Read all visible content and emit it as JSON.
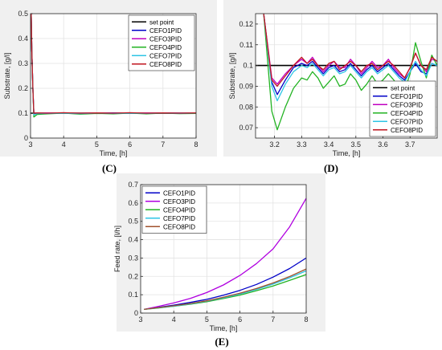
{
  "captions": {
    "c": "(C)",
    "d": "(D)",
    "e": "(E)"
  },
  "chart_data": [
    {
      "id": "C",
      "type": "line",
      "xlabel": "Time, [h]",
      "ylabel": "Substrate, [g/l]",
      "xlim": [
        3,
        8
      ],
      "ylim": [
        0,
        0.5
      ],
      "xticks": [
        3,
        4,
        5,
        6,
        7,
        8
      ],
      "yticks": [
        0,
        0.1,
        0.2,
        0.3,
        0.4,
        0.5
      ],
      "grid": true,
      "legend_position": "top-right",
      "series": [
        {
          "name": "set point",
          "color": "#000000",
          "x": [
            3,
            8
          ],
          "y": [
            0.1,
            0.1
          ]
        },
        {
          "name": "CEFO1PID",
          "color": "#0000c8",
          "x": [
            3.02,
            3.04,
            3.07,
            3.1,
            3.2,
            3.5,
            4,
            4.5,
            5,
            5.5,
            6,
            6.5,
            7,
            7.5,
            8
          ],
          "y": [
            0.5,
            0.35,
            0.2,
            0.1,
            0.099,
            0.1,
            0.101,
            0.099,
            0.1,
            0.101,
            0.1,
            0.099,
            0.101,
            0.1,
            0.1
          ]
        },
        {
          "name": "CEFO3PID",
          "color": "#c000c0",
          "x": [
            3.02,
            3.04,
            3.07,
            3.1,
            3.2,
            3.5,
            4,
            4.5,
            5,
            5.5,
            6,
            6.5,
            7,
            7.5,
            8
          ],
          "y": [
            0.5,
            0.35,
            0.2,
            0.1,
            0.1,
            0.101,
            0.1,
            0.1,
            0.101,
            0.1,
            0.1,
            0.101,
            0.1,
            0.1,
            0.1
          ]
        },
        {
          "name": "CEFO4PID",
          "color": "#22b322",
          "x": [
            3.02,
            3.04,
            3.07,
            3.1,
            3.2,
            3.5,
            4,
            4.5,
            5,
            5.5,
            6,
            6.5,
            7,
            7.5,
            8
          ],
          "y": [
            0.5,
            0.35,
            0.2,
            0.085,
            0.095,
            0.097,
            0.1,
            0.096,
            0.099,
            0.097,
            0.1,
            0.097,
            0.1,
            0.098,
            0.099
          ]
        },
        {
          "name": "CEFO7PID",
          "color": "#2ec5e5",
          "x": [
            3.02,
            3.04,
            3.07,
            3.1,
            3.2,
            3.5,
            4,
            4.5,
            5,
            5.5,
            6,
            6.5,
            7,
            7.5,
            8
          ],
          "y": [
            0.5,
            0.35,
            0.2,
            0.093,
            0.098,
            0.099,
            0.1,
            0.098,
            0.1,
            0.099,
            0.1,
            0.099,
            0.1,
            0.099,
            0.1
          ]
        },
        {
          "name": "CEFO8PID",
          "color": "#c0141e",
          "x": [
            3.02,
            3.04,
            3.07,
            3.1,
            3.2,
            3.5,
            4,
            4.5,
            5,
            5.5,
            6,
            6.5,
            7,
            7.5,
            8
          ],
          "y": [
            0.5,
            0.35,
            0.2,
            0.1,
            0.101,
            0.1,
            0.102,
            0.1,
            0.101,
            0.1,
            0.102,
            0.1,
            0.101,
            0.1,
            0.101
          ]
        }
      ]
    },
    {
      "id": "D",
      "type": "line",
      "xlabel": "Time, [h]",
      "ylabel": "Substrate, [g/l]",
      "xlim": [
        3.13,
        3.8
      ],
      "ylim": [
        0.065,
        0.125
      ],
      "xticks": [
        3.2,
        3.3,
        3.4,
        3.5,
        3.6,
        3.7
      ],
      "yticks": [
        0.07,
        0.08,
        0.09,
        0.1,
        0.11,
        0.12
      ],
      "grid": true,
      "legend_position": "bottom-right",
      "series": [
        {
          "name": "set point",
          "color": "#000000",
          "x": [
            3.13,
            3.8
          ],
          "y": [
            0.1,
            0.1
          ]
        },
        {
          "name": "CEFO1PID",
          "color": "#0000c8",
          "x": [
            3.16,
            3.19,
            3.21,
            3.24,
            3.27,
            3.3,
            3.32,
            3.34,
            3.36,
            3.38,
            3.4,
            3.42,
            3.44,
            3.46,
            3.48,
            3.5,
            3.52,
            3.54,
            3.56,
            3.58,
            3.6,
            3.62,
            3.64,
            3.66,
            3.68,
            3.7,
            3.72,
            3.74,
            3.76,
            3.78,
            3.8
          ],
          "y": [
            0.125,
            0.092,
            0.086,
            0.093,
            0.099,
            0.101,
            0.1,
            0.102,
            0.099,
            0.096,
            0.099,
            0.1,
            0.097,
            0.098,
            0.101,
            0.098,
            0.095,
            0.098,
            0.1,
            0.097,
            0.099,
            0.101,
            0.098,
            0.095,
            0.093,
            0.097,
            0.101,
            0.097,
            0.096,
            0.101,
            0.1
          ]
        },
        {
          "name": "CEFO3PID",
          "color": "#c000c0",
          "x": [
            3.16,
            3.19,
            3.21,
            3.24,
            3.27,
            3.3,
            3.32,
            3.34,
            3.36,
            3.38,
            3.4,
            3.42,
            3.44,
            3.46,
            3.48,
            3.5,
            3.52,
            3.54,
            3.56,
            3.58,
            3.6,
            3.62,
            3.64,
            3.66,
            3.68,
            3.7,
            3.72,
            3.74,
            3.76,
            3.78,
            3.8
          ],
          "y": [
            0.125,
            0.094,
            0.091,
            0.096,
            0.1,
            0.103,
            0.101,
            0.104,
            0.1,
            0.097,
            0.1,
            0.102,
            0.099,
            0.099,
            0.103,
            0.1,
            0.096,
            0.099,
            0.102,
            0.099,
            0.1,
            0.103,
            0.099,
            0.096,
            0.094,
            0.099,
            0.106,
            0.1,
            0.097,
            0.103,
            0.102
          ]
        },
        {
          "name": "CEFO4PID",
          "color": "#22b322",
          "x": [
            3.16,
            3.19,
            3.21,
            3.24,
            3.27,
            3.3,
            3.32,
            3.34,
            3.36,
            3.38,
            3.4,
            3.42,
            3.44,
            3.46,
            3.48,
            3.5,
            3.52,
            3.54,
            3.56,
            3.58,
            3.6,
            3.62,
            3.64,
            3.66,
            3.68,
            3.7,
            3.72,
            3.74,
            3.76,
            3.78,
            3.8
          ],
          "y": [
            0.125,
            0.078,
            0.069,
            0.08,
            0.089,
            0.094,
            0.093,
            0.097,
            0.094,
            0.089,
            0.092,
            0.095,
            0.09,
            0.091,
            0.096,
            0.093,
            0.088,
            0.091,
            0.095,
            0.091,
            0.093,
            0.096,
            0.093,
            0.089,
            0.088,
            0.096,
            0.111,
            0.102,
            0.094,
            0.105,
            0.1
          ]
        },
        {
          "name": "CEFO7PID",
          "color": "#2ec5e5",
          "x": [
            3.16,
            3.19,
            3.21,
            3.24,
            3.27,
            3.3,
            3.32,
            3.34,
            3.36,
            3.38,
            3.4,
            3.42,
            3.44,
            3.46,
            3.48,
            3.5,
            3.52,
            3.54,
            3.56,
            3.58,
            3.6,
            3.62,
            3.64,
            3.66,
            3.68,
            3.7,
            3.72,
            3.74,
            3.76,
            3.78,
            3.8
          ],
          "y": [
            0.125,
            0.09,
            0.083,
            0.091,
            0.097,
            0.1,
            0.099,
            0.101,
            0.098,
            0.095,
            0.098,
            0.099,
            0.096,
            0.097,
            0.1,
            0.097,
            0.094,
            0.097,
            0.099,
            0.096,
            0.098,
            0.1,
            0.097,
            0.094,
            0.092,
            0.097,
            0.102,
            0.098,
            0.095,
            0.101,
            0.1
          ]
        },
        {
          "name": "CEFO8PID",
          "color": "#c0141e",
          "x": [
            3.16,
            3.19,
            3.21,
            3.24,
            3.27,
            3.3,
            3.32,
            3.34,
            3.36,
            3.38,
            3.4,
            3.42,
            3.44,
            3.46,
            3.48,
            3.5,
            3.52,
            3.54,
            3.56,
            3.58,
            3.6,
            3.62,
            3.64,
            3.66,
            3.68,
            3.7,
            3.72,
            3.74,
            3.76,
            3.78,
            3.8
          ],
          "y": [
            0.125,
            0.093,
            0.09,
            0.095,
            0.1,
            0.104,
            0.101,
            0.103,
            0.1,
            0.098,
            0.101,
            0.102,
            0.098,
            0.1,
            0.102,
            0.1,
            0.097,
            0.1,
            0.101,
            0.098,
            0.1,
            0.102,
            0.1,
            0.097,
            0.094,
            0.099,
            0.106,
            0.1,
            0.098,
            0.104,
            0.102
          ]
        }
      ]
    },
    {
      "id": "E",
      "type": "line",
      "xlabel": "Time, [h]",
      "ylabel": "Feed rate, [l/h]",
      "xlim": [
        3,
        8
      ],
      "ylim": [
        0,
        0.7
      ],
      "xticks": [
        3,
        4,
        5,
        6,
        7,
        8
      ],
      "yticks": [
        0,
        0.1,
        0.2,
        0.3,
        0.4,
        0.5,
        0.6,
        0.7
      ],
      "grid": true,
      "legend_position": "top-left",
      "series": [
        {
          "name": "CEFO1PID",
          "color": "#0000c8",
          "x": [
            3.1,
            3.5,
            4,
            4.5,
            5,
            5.5,
            6,
            6.5,
            7,
            7.5,
            8
          ],
          "y": [
            0.02,
            0.03,
            0.043,
            0.058,
            0.075,
            0.097,
            0.124,
            0.156,
            0.196,
            0.243,
            0.3
          ]
        },
        {
          "name": "CEFO3PID",
          "color": "#b000e0",
          "x": [
            3.1,
            3.5,
            4,
            4.5,
            5,
            5.5,
            6,
            6.5,
            7,
            7.5,
            8
          ],
          "y": [
            0.02,
            0.035,
            0.055,
            0.08,
            0.112,
            0.153,
            0.205,
            0.27,
            0.35,
            0.47,
            0.625
          ]
        },
        {
          "name": "CEFO4PID",
          "color": "#22b322",
          "x": [
            3.1,
            3.5,
            4,
            4.5,
            5,
            5.5,
            6,
            6.5,
            7,
            7.5,
            8
          ],
          "y": [
            0.02,
            0.027,
            0.037,
            0.048,
            0.062,
            0.079,
            0.098,
            0.122,
            0.148,
            0.178,
            0.21
          ]
        },
        {
          "name": "CEFO7PID",
          "color": "#2ec5e5",
          "x": [
            3.1,
            3.5,
            4,
            4.5,
            5,
            5.5,
            6,
            6.5,
            7,
            7.5,
            8
          ],
          "y": [
            0.02,
            0.028,
            0.038,
            0.05,
            0.065,
            0.083,
            0.104,
            0.129,
            0.158,
            0.192,
            0.23
          ]
        },
        {
          "name": "CEFO8PID",
          "color": "#a0522d",
          "x": [
            3.1,
            3.5,
            4,
            4.5,
            5,
            5.5,
            6,
            6.5,
            7,
            7.5,
            8
          ],
          "y": [
            0.02,
            0.029,
            0.04,
            0.052,
            0.067,
            0.086,
            0.108,
            0.134,
            0.164,
            0.199,
            0.24
          ]
        }
      ]
    }
  ]
}
